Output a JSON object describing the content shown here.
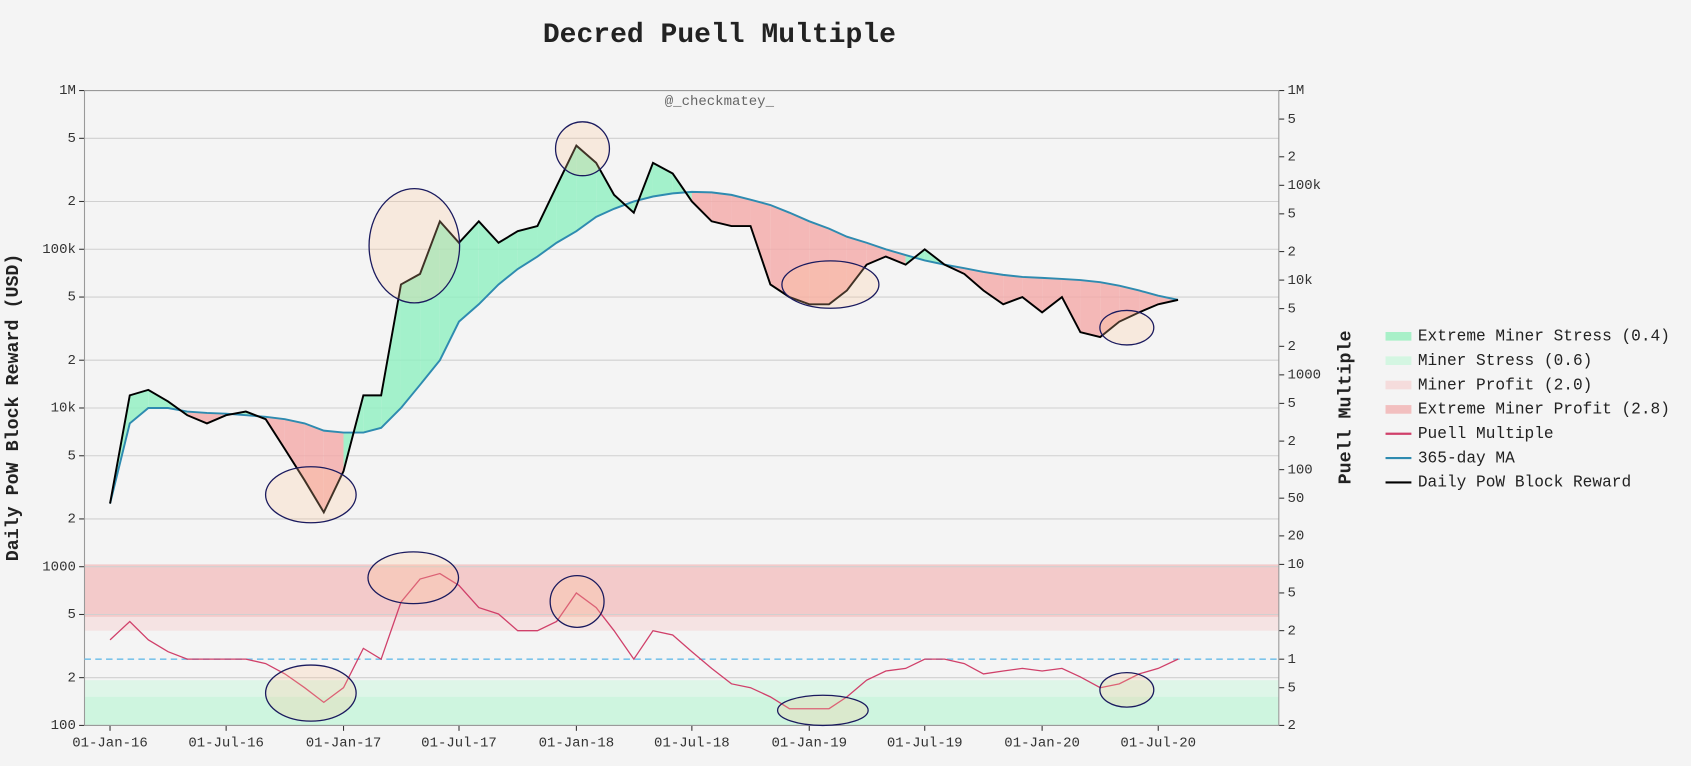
{
  "chart_data": {
    "type": "line",
    "title": "Decred Puell Multiple",
    "annotation": "@_checkmatey_",
    "y_label": "Daily PoW Block Reward (USD)",
    "y2_label": "Puell Multiple",
    "x": [
      "2016-01-01",
      "2016-02-01",
      "2016-03-01",
      "2016-04-01",
      "2016-05-01",
      "2016-06-01",
      "2016-07-01",
      "2016-08-01",
      "2016-09-01",
      "2016-10-01",
      "2016-11-01",
      "2016-12-01",
      "2017-01-01",
      "2017-02-01",
      "2017-03-01",
      "2017-04-01",
      "2017-05-01",
      "2017-06-01",
      "2017-07-01",
      "2017-08-01",
      "2017-09-01",
      "2017-10-01",
      "2017-11-01",
      "2017-12-01",
      "2018-01-01",
      "2018-02-01",
      "2018-03-01",
      "2018-04-01",
      "2018-05-01",
      "2018-06-01",
      "2018-07-01",
      "2018-08-01",
      "2018-09-01",
      "2018-10-01",
      "2018-11-01",
      "2018-12-01",
      "2019-01-01",
      "2019-02-01",
      "2019-03-01",
      "2019-04-01",
      "2019-05-01",
      "2019-06-01",
      "2019-07-01",
      "2019-08-01",
      "2019-09-01",
      "2019-10-01",
      "2019-11-01",
      "2019-12-01",
      "2020-01-01",
      "2020-02-01",
      "2020-03-01",
      "2020-04-01",
      "2020-05-01",
      "2020-06-01",
      "2020-07-01",
      "2020-08-01"
    ],
    "xlim": [
      "2015-11-22",
      "2021-01-06"
    ],
    "xticks": [
      {
        "value": "2016-01-01",
        "label": "01-Jan-16"
      },
      {
        "value": "2016-07-01",
        "label": "01-Jul-16"
      },
      {
        "value": "2017-01-01",
        "label": "01-Jan-17"
      },
      {
        "value": "2017-07-01",
        "label": "01-Jul-17"
      },
      {
        "value": "2018-01-01",
        "label": "01-Jan-18"
      },
      {
        "value": "2018-07-01",
        "label": "01-Jul-18"
      },
      {
        "value": "2019-01-01",
        "label": "01-Jan-19"
      },
      {
        "value": "2019-07-01",
        "label": "01-Jul-19"
      },
      {
        "value": "2020-01-01",
        "label": "01-Jan-20"
      },
      {
        "value": "2020-07-01",
        "label": "01-Jul-20"
      }
    ],
    "log_scale": true,
    "grid": true,
    "ylim": [
      100,
      1000000
    ],
    "yticks": [
      {
        "value": 1000000,
        "label": "1M"
      },
      {
        "value": 500000,
        "label": "5"
      },
      {
        "value": 200000,
        "label": "2"
      },
      {
        "value": 100000,
        "label": "100k"
      },
      {
        "value": 50000,
        "label": "5"
      },
      {
        "value": 20000,
        "label": "2"
      },
      {
        "value": 10000,
        "label": "10k"
      },
      {
        "value": 5000,
        "label": "5"
      },
      {
        "value": 2000,
        "label": "2"
      },
      1000,
      {
        "value": 500,
        "label": "5"
      },
      {
        "value": 200,
        "label": "2"
      },
      100
    ],
    "y2lim": [
      0.2,
      1000000
    ],
    "y2ticks": [
      {
        "value": 1000000,
        "label": "1M"
      },
      {
        "value": 500000,
        "label": "5"
      },
      {
        "value": 200000,
        "label": "2"
      },
      {
        "value": 100000,
        "label": "100k"
      },
      {
        "value": 50000,
        "label": "5"
      },
      {
        "value": 20000,
        "label": "2"
      },
      {
        "value": 10000,
        "label": "10k"
      },
      {
        "value": 5000,
        "label": "5"
      },
      {
        "value": 2000,
        "label": "2"
      },
      1000,
      {
        "value": 500,
        "label": "5"
      },
      {
        "value": 200,
        "label": "2"
      },
      100,
      50,
      20,
      10,
      5,
      2,
      1,
      {
        "value": 0.5,
        "label": "5"
      },
      {
        "value": 0.2,
        "label": "2"
      }
    ],
    "reference_line": {
      "value": 1,
      "color": "#7cc4ea",
      "axis": "y2"
    },
    "legend": "right",
    "series": [
      {
        "name": "Extreme Miner Stress (0.4)",
        "kind": "band",
        "axis": "y2",
        "range": [
          0.2,
          0.4
        ],
        "color": "#a8f0c8"
      },
      {
        "name": "Miner Stress (0.6)",
        "kind": "band",
        "axis": "y2",
        "range": [
          0.2,
          0.6
        ],
        "color": "#d4f6e2"
      },
      {
        "name": "Miner Profit (2.0)",
        "kind": "band",
        "axis": "y2",
        "range": [
          2.0,
          10
        ],
        "color": "#f5dcdc"
      },
      {
        "name": "Extreme Miner Profit (2.8)",
        "kind": "band",
        "axis": "y2",
        "range": [
          2.8,
          10
        ],
        "color": "#f2bfbf"
      },
      {
        "name": "Puell Multiple",
        "kind": "line",
        "axis": "y2",
        "color": "#d0406a",
        "values": [
          1.6,
          2.5,
          1.6,
          1.2,
          1.0,
          1.0,
          1.0,
          1.0,
          0.9,
          0.7,
          0.5,
          0.35,
          0.5,
          1.3,
          1.0,
          4,
          7,
          8,
          6,
          3.5,
          3,
          2,
          2,
          2.5,
          5,
          3.5,
          2,
          1.0,
          2,
          1.8,
          1.2,
          0.8,
          0.55,
          0.5,
          0.4,
          0.3,
          0.3,
          0.3,
          0.4,
          0.6,
          0.75,
          0.8,
          1.0,
          1.0,
          0.9,
          0.7,
          0.75,
          0.8,
          0.75,
          0.8,
          0.65,
          0.5,
          0.55,
          0.7,
          0.8,
          1.0
        ]
      },
      {
        "name": "365-day MA",
        "kind": "line",
        "color": "#2e8bb0",
        "values": [
          2500,
          8000,
          10000,
          10000,
          9500,
          9300,
          9200,
          9000,
          8800,
          8500,
          8000,
          7200,
          7000,
          7000,
          7500,
          10000,
          14000,
          20000,
          35000,
          45000,
          60000,
          75000,
          90000,
          110000,
          130000,
          160000,
          180000,
          200000,
          215000,
          225000,
          230000,
          228000,
          220000,
          205000,
          190000,
          170000,
          150000,
          135000,
          120000,
          110000,
          100000,
          92000,
          85000,
          80000,
          76000,
          72000,
          69000,
          67000,
          66000,
          65000,
          64000,
          62000,
          59000,
          55000,
          51000,
          48000
        ]
      },
      {
        "name": "Daily PoW Block Reward",
        "kind": "line",
        "color": "#000000",
        "values": [
          2500,
          12000,
          13000,
          11000,
          9000,
          8000,
          9000,
          9500,
          8500,
          5500,
          3500,
          2200,
          4000,
          12000,
          12000,
          60000,
          70000,
          150000,
          110000,
          150000,
          110000,
          130000,
          140000,
          250000,
          450000,
          350000,
          220000,
          170000,
          350000,
          300000,
          200000,
          150000,
          140000,
          140000,
          60000,
          50000,
          45000,
          45000,
          55000,
          80000,
          90000,
          80000,
          100000,
          80000,
          70000,
          55000,
          45000,
          50000,
          40000,
          50000,
          30000,
          28000,
          35000,
          40000,
          45000,
          48000
        ]
      }
    ],
    "fill_colors": {
      "above": "#8ef0c0",
      "below": "#f4a9a8"
    }
  }
}
